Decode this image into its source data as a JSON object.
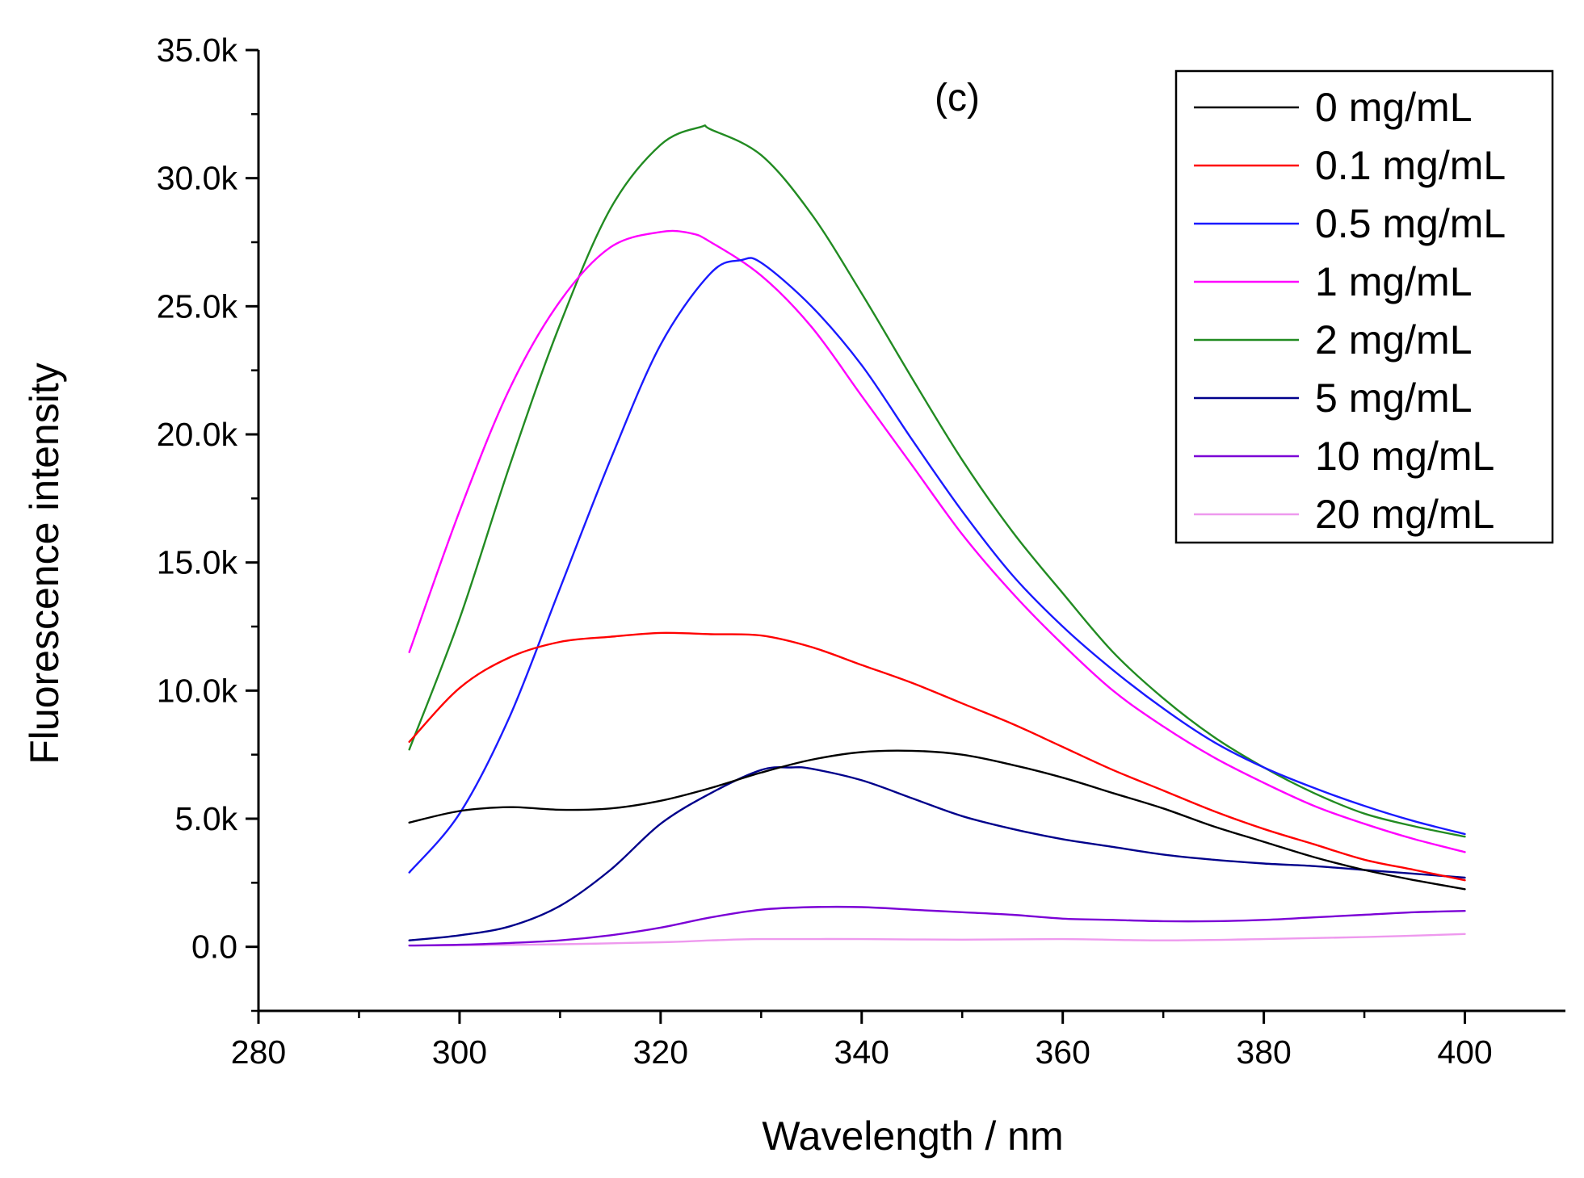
{
  "chart_data": {
    "type": "line",
    "title": "",
    "annotation": "(c)",
    "xlabel": "Wavelength / nm",
    "ylabel": "Fluorescence intensity",
    "xlim": [
      280,
      410
    ],
    "ylim": [
      -2500,
      35000
    ],
    "x_ticks": [
      280,
      300,
      320,
      340,
      360,
      380,
      400
    ],
    "x_tick_labels": [
      "280",
      "300",
      "320",
      "340",
      "360",
      "380",
      "400"
    ],
    "y_ticks": [
      0,
      5000,
      10000,
      15000,
      20000,
      25000,
      30000,
      35000
    ],
    "y_tick_labels": [
      "0.0",
      "5.0k",
      "10.0k",
      "15.0k",
      "20.0k",
      "25.0k",
      "30.0k",
      "35.0k"
    ],
    "grid": false,
    "legend_position": "top-right",
    "series": [
      {
        "name": "0 mg/mL",
        "color": "#000000",
        "x": [
          295,
          300,
          305,
          310,
          315,
          320,
          325,
          330,
          335,
          340,
          345,
          350,
          355,
          360,
          365,
          370,
          375,
          380,
          385,
          390,
          395,
          400
        ],
        "y": [
          4850,
          5300,
          5450,
          5350,
          5400,
          5700,
          6200,
          6800,
          7300,
          7600,
          7650,
          7500,
          7100,
          6600,
          6000,
          5400,
          4700,
          4100,
          3500,
          3000,
          2600,
          2250
        ]
      },
      {
        "name": "0.1 mg/mL",
        "color": "#ff0000",
        "x": [
          295,
          300,
          305,
          310,
          315,
          320,
          325,
          330,
          335,
          340,
          345,
          350,
          355,
          360,
          365,
          370,
          375,
          380,
          385,
          390,
          395,
          400
        ],
        "y": [
          8000,
          10100,
          11300,
          11900,
          12100,
          12250,
          12200,
          12150,
          11700,
          11000,
          10300,
          9500,
          8700,
          7800,
          6900,
          6100,
          5300,
          4600,
          4000,
          3400,
          3000,
          2600
        ]
      },
      {
        "name": "0.5 mg/mL",
        "color": "#1a1aff",
        "x": [
          295,
          300,
          305,
          310,
          315,
          320,
          325,
          328,
          330,
          335,
          340,
          345,
          350,
          355,
          360,
          365,
          370,
          375,
          380,
          385,
          390,
          395,
          400
        ],
        "y": [
          2900,
          5200,
          9000,
          14000,
          19000,
          23500,
          26300,
          26800,
          26700,
          25000,
          22700,
          19800,
          17000,
          14500,
          12500,
          10800,
          9300,
          8000,
          7000,
          6200,
          5500,
          4900,
          4400
        ]
      },
      {
        "name": "1 mg/mL",
        "color": "#ff00ff",
        "x": [
          295,
          300,
          305,
          310,
          315,
          320,
          323,
          325,
          330,
          335,
          340,
          345,
          350,
          355,
          360,
          365,
          370,
          375,
          380,
          385,
          390,
          395,
          400
        ],
        "y": [
          11500,
          17000,
          21800,
          25200,
          27300,
          27900,
          27850,
          27500,
          26200,
          24200,
          21500,
          18800,
          16100,
          13800,
          11800,
          10000,
          8600,
          7400,
          6400,
          5500,
          4800,
          4200,
          3700
        ]
      },
      {
        "name": "2 mg/mL",
        "color": "#228b22",
        "x": [
          295,
          300,
          305,
          310,
          315,
          320,
          324,
          325,
          330,
          335,
          340,
          345,
          350,
          355,
          360,
          365,
          370,
          375,
          380,
          385,
          390,
          395,
          400
        ],
        "y": [
          7700,
          12800,
          18800,
          24300,
          28800,
          31300,
          32000,
          31900,
          30900,
          28600,
          25500,
          22200,
          19000,
          16200,
          13800,
          11500,
          9700,
          8200,
          7000,
          6000,
          5200,
          4700,
          4300
        ]
      },
      {
        "name": "5 mg/mL",
        "color": "#00008b",
        "x": [
          295,
          300,
          305,
          310,
          315,
          320,
          325,
          330,
          333,
          335,
          340,
          345,
          350,
          355,
          360,
          365,
          370,
          375,
          380,
          385,
          390,
          395,
          400
        ],
        "y": [
          250,
          450,
          800,
          1600,
          3000,
          4800,
          6000,
          6900,
          7000,
          6950,
          6500,
          5800,
          5100,
          4600,
          4200,
          3900,
          3600,
          3400,
          3250,
          3150,
          3000,
          2850,
          2700
        ]
      },
      {
        "name": "10 mg/mL",
        "color": "#7b00d6",
        "x": [
          295,
          300,
          305,
          310,
          315,
          320,
          325,
          330,
          335,
          340,
          345,
          350,
          355,
          360,
          365,
          370,
          375,
          380,
          385,
          390,
          395,
          400
        ],
        "y": [
          50,
          80,
          150,
          250,
          450,
          750,
          1150,
          1450,
          1550,
          1550,
          1450,
          1350,
          1250,
          1100,
          1050,
          1000,
          1000,
          1050,
          1150,
          1250,
          1350,
          1400
        ]
      },
      {
        "name": "20 mg/mL",
        "color": "#ee99ee",
        "x": [
          295,
          300,
          310,
          320,
          325,
          330,
          340,
          350,
          360,
          370,
          380,
          390,
          400
        ],
        "y": [
          50,
          60,
          100,
          180,
          250,
          300,
          300,
          280,
          300,
          250,
          300,
          380,
          500
        ]
      }
    ]
  }
}
